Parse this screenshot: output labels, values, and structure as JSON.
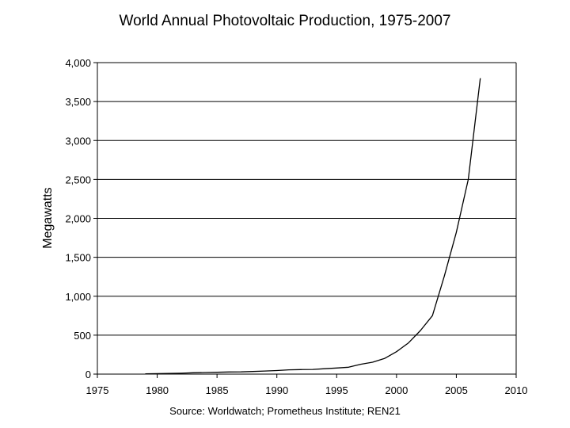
{
  "chart_data": {
    "type": "line",
    "title": "World Annual Photovoltaic Production, 1975-2007",
    "xlabel": "",
    "ylabel": "Megawatts",
    "source": "Source: Worldwatch; Prometheus Institute; REN21",
    "xlim": [
      1975,
      2010
    ],
    "ylim": [
      0,
      4000
    ],
    "x_ticks": [
      1975,
      1980,
      1985,
      1990,
      1995,
      2000,
      2005,
      2010
    ],
    "y_ticks": [
      0,
      500,
      1000,
      1500,
      2000,
      2500,
      3000,
      3500,
      4000
    ],
    "y_tick_labels": [
      "0",
      "500",
      "1,000",
      "1,500",
      "2,000",
      "2,500",
      "3,000",
      "3,500",
      "4,000"
    ],
    "grid": "horizontal",
    "legend": "none",
    "line_color": "#000000",
    "series": [
      {
        "x": [
          1979,
          1980,
          1981,
          1982,
          1983,
          1984,
          1985,
          1986,
          1987,
          1988,
          1989,
          1990,
          1991,
          1992,
          1993,
          1994,
          1995,
          1996,
          1997,
          1998,
          1999,
          2000,
          2001,
          2002,
          2003,
          2004,
          2005,
          2006,
          2007
        ],
        "y": [
          4,
          6,
          8,
          11,
          17,
          20,
          23,
          27,
          29,
          34,
          40,
          46,
          55,
          58,
          60,
          69,
          78,
          89,
          126,
          153,
          201,
          288,
          401,
          560,
          750,
          1260,
          1820,
          2500,
          3800
        ]
      }
    ]
  }
}
